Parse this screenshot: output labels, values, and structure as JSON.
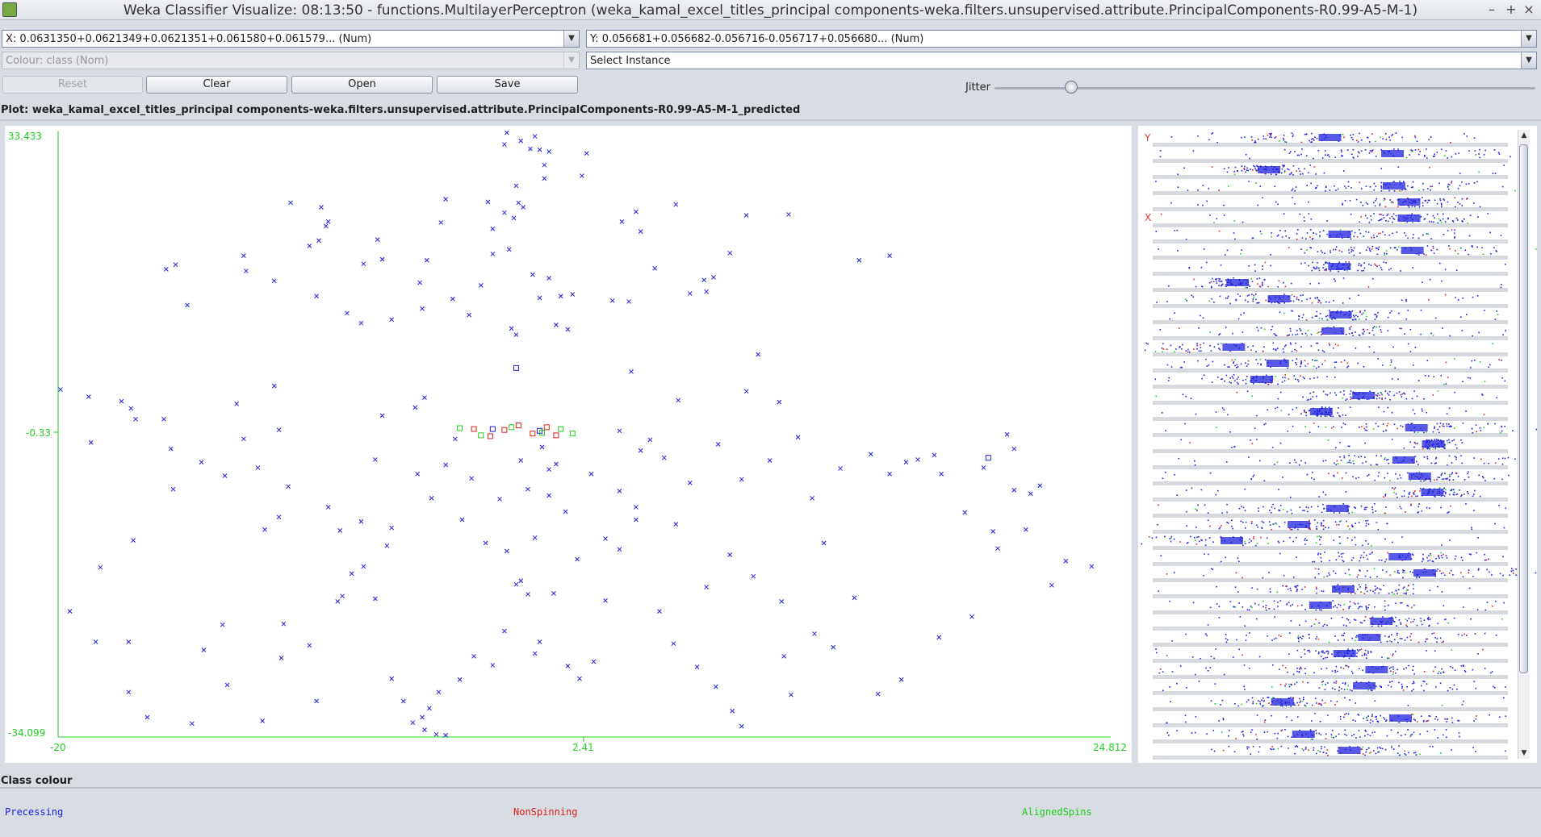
{
  "window": {
    "title": "Weka Classifier Visualize: 08:13:50 - functions.MultilayerPerceptron (weka_kamal_excel_titles_principal components-weka.filters.unsupervised.attribute.PrincipalComponents-R0.99-A5-M-1)",
    "minimize": "–",
    "maximize": "+",
    "close": "×"
  },
  "controls": {
    "x_axis": "X: 0.0631350+0.0621349+0.0621351+0.061580+0.061579... (Num)",
    "y_axis": "Y: 0.056681+0.056682-0.056716-0.056717+0.056680... (Num)",
    "colour": "Colour: class (Nom)",
    "select_instance": "Select Instance",
    "reset": "Reset",
    "clear": "Clear",
    "open": "Open",
    "save": "Save",
    "jitter": "Jitter",
    "jitter_level": 0.14
  },
  "plot": {
    "title": "Plot: weka_kamal_excel_titles_principal components-weka.filters.unsupervised.attribute.PrincipalComponents-R0.99-A5-M-1_predicted",
    "y_max_label": "33.433",
    "y_mid_label": "-0.33",
    "y_min_label": "-34.099",
    "x_min_label": "-20",
    "x_mid_label": "2.41",
    "x_max_label": "24.812"
  },
  "colors": {
    "Precessing": "#2020e0",
    "NonSpinning": "#e02020",
    "AlignedSpins": "#20d020",
    "axis": "#1fcf1f"
  },
  "chart_data": {
    "type": "scatter",
    "xlim": [
      -20,
      24.812
    ],
    "ylim": [
      -34.099,
      33.433
    ],
    "x_ticks": [
      -20,
      2.41,
      24.812
    ],
    "y_ticks": [
      33.433,
      -0.33,
      -34.099
    ],
    "classes": [
      "Precessing",
      "NonSpinning",
      "AlignedSpins"
    ],
    "markers": {
      "error": "x",
      "correct": "square"
    },
    "series": [
      {
        "class": "Precessing",
        "marker": "x",
        "points": [
          [
            -0.9,
            33.2
          ],
          [
            -0.3,
            32.3
          ],
          [
            -1.0,
            31.9
          ],
          [
            0.1,
            31.4
          ],
          [
            0.5,
            31.3
          ],
          [
            0.3,
            32.8
          ],
          [
            0.9,
            31.1
          ],
          [
            2.5,
            30.9
          ],
          [
            0.7,
            29.6
          ],
          [
            2.3,
            28.4
          ],
          [
            0.7,
            28.1
          ],
          [
            -0.5,
            27.3
          ],
          [
            -0.4,
            25.4
          ],
          [
            -0.2,
            24.9
          ],
          [
            -0.6,
            23.7
          ],
          [
            -1.5,
            22.5
          ],
          [
            -1.7,
            25.5
          ],
          [
            -1.0,
            24.3
          ],
          [
            -3.5,
            25.8
          ],
          [
            -3.7,
            23.2
          ],
          [
            -0.8,
            20.2
          ],
          [
            -1.5,
            19.7
          ],
          [
            -2.0,
            16.2
          ],
          [
            0.2,
            17.4
          ],
          [
            0.9,
            17.0
          ],
          [
            1.9,
            15.2
          ],
          [
            0.5,
            14.8
          ],
          [
            1.2,
            11.8
          ],
          [
            1.7,
            11.3
          ],
          [
            1.4,
            15.0
          ],
          [
            -3.2,
            14.7
          ],
          [
            -2.5,
            12.9
          ],
          [
            -4.5,
            13.6
          ],
          [
            -0.7,
            11.4
          ],
          [
            -0.5,
            10.7
          ],
          [
            -5.8,
            12.4
          ],
          [
            -9.0,
            15.0
          ],
          [
            -12.0,
            17.8
          ],
          [
            -15.0,
            18.5
          ],
          [
            -15.4,
            18.0
          ],
          [
            -12.1,
            19.5
          ],
          [
            -10.1,
            25.4
          ],
          [
            -8.9,
            21.2
          ],
          [
            -9.3,
            20.6
          ],
          [
            -8.6,
            22.8
          ],
          [
            -8.5,
            23.3
          ],
          [
            -8.8,
            24.9
          ],
          [
            -6.2,
            19.1
          ],
          [
            -6.4,
            21.3
          ],
          [
            -14.5,
            14.0
          ],
          [
            -10.8,
            16.7
          ],
          [
            -7.1,
            12.0
          ],
          [
            -7.7,
            13.1
          ],
          [
            -7.0,
            18.6
          ],
          [
            -4.3,
            19.0
          ],
          [
            -4.6,
            16.5
          ],
          [
            4.0,
            23.3
          ],
          [
            4.8,
            22.2
          ],
          [
            5.4,
            18.1
          ],
          [
            7.9,
            17.1
          ],
          [
            7.5,
            16.8
          ],
          [
            7.6,
            15.5
          ],
          [
            8.6,
            19.8
          ],
          [
            6.3,
            25.2
          ],
          [
            11.1,
            24.1
          ],
          [
            9.3,
            24.0
          ],
          [
            14.1,
            19.0
          ],
          [
            15.4,
            19.5
          ],
          [
            6.9,
            15.3
          ],
          [
            4.6,
            24.4
          ],
          [
            4.3,
            14.4
          ],
          [
            3.6,
            14.5
          ],
          [
            4.4,
            6.6
          ],
          [
            -19.9,
            4.6
          ],
          [
            -18.7,
            3.8
          ],
          [
            -18.6,
            -1.3
          ],
          [
            -17.3,
            3.3
          ],
          [
            -16.9,
            2.5
          ],
          [
            -16.7,
            1.3
          ],
          [
            -15.5,
            1.3
          ],
          [
            -15.2,
            -2.0
          ],
          [
            -15.1,
            -6.5
          ],
          [
            -13.9,
            -3.5
          ],
          [
            -12.9,
            -5.0
          ],
          [
            -12.4,
            3.0
          ],
          [
            -12.1,
            -0.9
          ],
          [
            -11.5,
            -4.1
          ],
          [
            -11.2,
            -11.0
          ],
          [
            -10.8,
            5.0
          ],
          [
            -10.6,
            -9.6
          ],
          [
            -10.2,
            -6.2
          ],
          [
            -10.6,
            0.1
          ],
          [
            -8.5,
            -8.5
          ],
          [
            -8.0,
            -11.1
          ],
          [
            -7.1,
            -10.1
          ],
          [
            -7.0,
            -15.1
          ],
          [
            -6.2,
            1.7
          ],
          [
            -6.5,
            -3.2
          ],
          [
            -6.0,
            -12.8
          ],
          [
            -4.8,
            2.6
          ],
          [
            -4.7,
            -4.8
          ],
          [
            -4.1,
            -7.5
          ],
          [
            -3.1,
            -0.9
          ],
          [
            -3.5,
            -3.8
          ],
          [
            -2.8,
            -9.9
          ],
          [
            -1.8,
            -12.5
          ],
          [
            -1.2,
            -7.6
          ],
          [
            -0.9,
            -13.4
          ],
          [
            -0.3,
            -3.3
          ],
          [
            0.0,
            -6.5
          ],
          [
            0.3,
            -11.9
          ],
          [
            0.6,
            -1.8
          ],
          [
            1.2,
            -3.7
          ],
          [
            1.6,
            -9.0
          ],
          [
            2.1,
            -14.3
          ],
          [
            2.7,
            -4.8
          ],
          [
            3.3,
            -12.0
          ],
          [
            3.9,
            -6.7
          ],
          [
            4.6,
            -8.5
          ],
          [
            5.2,
            -1.0
          ],
          [
            5.8,
            -3.0
          ],
          [
            6.3,
            -10.4
          ],
          [
            6.9,
            -5.8
          ],
          [
            7.6,
            -17.4
          ],
          [
            8.1,
            -1.5
          ],
          [
            8.6,
            -13.8
          ],
          [
            9.1,
            -5.4
          ],
          [
            9.6,
            -16.2
          ],
          [
            10.3,
            -3.3
          ],
          [
            10.8,
            -19.0
          ],
          [
            11.5,
            -0.7
          ],
          [
            12.1,
            -7.5
          ],
          [
            12.6,
            -12.5
          ],
          [
            13.3,
            -4.2
          ],
          [
            13.9,
            -18.6
          ],
          [
            14.6,
            -2.6
          ],
          [
            15.4,
            -4.8
          ],
          [
            16.1,
            -3.5
          ],
          [
            16.6,
            -3.2
          ],
          [
            17.6,
            -4.8
          ],
          [
            18.6,
            -9.1
          ],
          [
            19.4,
            -4.1
          ],
          [
            19.8,
            -11.2
          ],
          [
            20.7,
            -6.6
          ],
          [
            21.8,
            -6.1
          ],
          [
            22.9,
            -14.5
          ],
          [
            24.0,
            -15.1
          ],
          [
            20.4,
            -0.4
          ],
          [
            20.7,
            -2.0
          ],
          [
            21.4,
            -7.0
          ],
          [
            17.3,
            -2.7
          ],
          [
            10.7,
            3.2
          ],
          [
            9.8,
            8.5
          ],
          [
            9.3,
            4.4
          ],
          [
            6.4,
            3.4
          ],
          [
            3.9,
            0.0
          ],
          [
            4.8,
            -2.2
          ],
          [
            0.9,
            -4.3
          ],
          [
            -2.4,
            -5.3
          ],
          [
            -4.4,
            3.7
          ],
          [
            -5.8,
            -10.8
          ],
          [
            -7.9,
            -18.4
          ],
          [
            -10.4,
            -21.5
          ],
          [
            -12.8,
            -28.3
          ],
          [
            -13.8,
            -24.4
          ],
          [
            -16.8,
            -12.2
          ],
          [
            -18.2,
            -15.2
          ],
          [
            -17.0,
            -23.5
          ],
          [
            -13.0,
            -21.6
          ],
          [
            -10.5,
            -25.3
          ],
          [
            -9.3,
            -23.9
          ],
          [
            -8.1,
            -19.0
          ],
          [
            -7.5,
            -15.9
          ],
          [
            -6.5,
            -18.7
          ],
          [
            -5.8,
            -27.6
          ],
          [
            -5.3,
            -30.1
          ],
          [
            -4.9,
            -32.5
          ],
          [
            -4.5,
            -31.9
          ],
          [
            -4.2,
            -30.9
          ],
          [
            -3.8,
            -29.1
          ],
          [
            -3.9,
            -33.8
          ],
          [
            -4.4,
            -33.3
          ],
          [
            -3.5,
            -33.9
          ],
          [
            -2.9,
            -27.7
          ],
          [
            -2.3,
            -25.1
          ],
          [
            -1.0,
            -22.3
          ],
          [
            -0.5,
            -17.1
          ],
          [
            -0.3,
            -16.7
          ],
          [
            0.0,
            -18.2
          ],
          [
            0.5,
            -23.5
          ],
          [
            1.1,
            -18.1
          ],
          [
            1.7,
            -26.2
          ],
          [
            2.2,
            -27.6
          ],
          [
            2.8,
            -25.7
          ],
          [
            3.3,
            -18.9
          ],
          [
            3.9,
            -13.2
          ],
          [
            4.6,
            -9.9
          ],
          [
            5.6,
            -20.1
          ],
          [
            6.2,
            -23.7
          ],
          [
            7.2,
            -26.3
          ],
          [
            8.0,
            -28.5
          ],
          [
            8.7,
            -31.2
          ],
          [
            9.1,
            -32.9
          ],
          [
            10.9,
            -25.1
          ],
          [
            11.2,
            -29.4
          ],
          [
            12.2,
            -22.6
          ],
          [
            13.0,
            -24.1
          ],
          [
            14.9,
            -29.3
          ],
          [
            15.9,
            -27.7
          ],
          [
            17.5,
            -23.0
          ],
          [
            18.9,
            -20.7
          ],
          [
            20.0,
            -13.1
          ],
          [
            21.2,
            -11.0
          ],
          [
            22.3,
            -17.2
          ],
          [
            -1.5,
            -26.1
          ],
          [
            0.3,
            -24.8
          ],
          [
            0.9,
            -7.2
          ],
          [
            -19.5,
            -20.1
          ],
          [
            -18.4,
            -23.5
          ],
          [
            -17.0,
            -29.1
          ],
          [
            -16.2,
            -31.9
          ],
          [
            -14.3,
            -32.6
          ],
          [
            -11.3,
            -32.3
          ],
          [
            -9.0,
            -30.1
          ]
        ]
      },
      {
        "class": "Precessing",
        "marker": "square",
        "points": [
          [
            -0.5,
            7.0
          ],
          [
            19.6,
            -3.0
          ],
          [
            -1.5,
            0.2
          ],
          [
            0.5,
            0.0
          ]
        ]
      },
      {
        "class": "NonSpinning",
        "marker": "square",
        "points": [
          [
            -2.3,
            0.2
          ],
          [
            -1.6,
            -0.6
          ],
          [
            -1.0,
            0.1
          ],
          [
            -0.4,
            0.6
          ],
          [
            0.2,
            -0.3
          ],
          [
            0.8,
            0.4
          ],
          [
            1.2,
            -0.5
          ]
        ]
      },
      {
        "class": "AlignedSpins",
        "marker": "square",
        "points": [
          [
            -2.9,
            0.3
          ],
          [
            -2.0,
            -0.5
          ],
          [
            -0.7,
            0.4
          ],
          [
            0.6,
            -0.2
          ],
          [
            1.4,
            0.2
          ],
          [
            1.9,
            -0.3
          ]
        ]
      }
    ]
  },
  "attribute_panel": {
    "y_marker": "Y",
    "x_marker": "X"
  },
  "legend": {
    "title": "Class colour",
    "items": [
      {
        "label": "Precessing",
        "color": "#2020e0"
      },
      {
        "label": "NonSpinning",
        "color": "#e02020"
      },
      {
        "label": "AlignedSpins",
        "color": "#20d020"
      }
    ]
  }
}
